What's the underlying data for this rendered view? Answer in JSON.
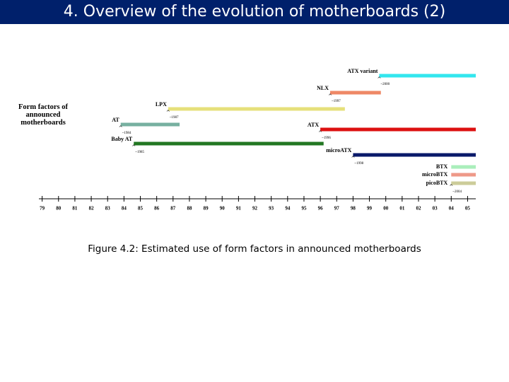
{
  "header": {
    "title": "4. Overview of the evolution of motherboards (2)"
  },
  "chart_data": {
    "type": "timeline",
    "side_label": "Form factors of announced motherboards",
    "caption": "Figure 4.2: Estimated use of form factors in announced motherboards",
    "xlim": [
      1978.8,
      2005.5
    ],
    "xticks": [
      {
        "value": 1979,
        "label": "79"
      },
      {
        "value": 1980,
        "label": "80"
      },
      {
        "value": 1981,
        "label": "81"
      },
      {
        "value": 1982,
        "label": "82"
      },
      {
        "value": 1983,
        "label": "83"
      },
      {
        "value": 1984,
        "label": "84"
      },
      {
        "value": 1985,
        "label": "85"
      },
      {
        "value": 1986,
        "label": "86"
      },
      {
        "value": 1987,
        "label": "87"
      },
      {
        "value": 1988,
        "label": "88"
      },
      {
        "value": 1989,
        "label": "89"
      },
      {
        "value": 1990,
        "label": "90"
      },
      {
        "value": 1991,
        "label": "91"
      },
      {
        "value": 1992,
        "label": "92"
      },
      {
        "value": 1993,
        "label": "93"
      },
      {
        "value": 1994,
        "label": "94"
      },
      {
        "value": 1995,
        "label": "95"
      },
      {
        "value": 1996,
        "label": "96"
      },
      {
        "value": 1997,
        "label": "97"
      },
      {
        "value": 1998,
        "label": "98"
      },
      {
        "value": 1999,
        "label": "99"
      },
      {
        "value": 2000,
        "label": "00"
      },
      {
        "value": 2001,
        "label": "01"
      },
      {
        "value": 2002,
        "label": "02"
      },
      {
        "value": 2003,
        "label": "03"
      },
      {
        "value": 2004,
        "label": "04"
      },
      {
        "value": 2005,
        "label": "05"
      }
    ],
    "series": [
      {
        "name": "ATX variant",
        "color": "#33e6ee",
        "start": 1999.6,
        "end": 2005.5,
        "note": "~2000"
      },
      {
        "name": "NLX",
        "color": "#ee8866",
        "start": 1996.6,
        "end": 1999.7,
        "note": "~1997"
      },
      {
        "name": "LPX",
        "color": "#e6e07a",
        "start": 1986.7,
        "end": 1997.5,
        "note": "~1987"
      },
      {
        "name": "AT",
        "color": "#77b0a0",
        "start": 1983.8,
        "end": 1987.4,
        "note": "~1984"
      },
      {
        "name": "ATX",
        "color": "#dd1111",
        "start": 1996,
        "end": 2005.5,
        "note": "~1996"
      },
      {
        "name": "Baby AT",
        "color": "#227722",
        "start": 1984.6,
        "end": 1996.2,
        "note": "~1985"
      },
      {
        "name": "microATX",
        "color": "#0a1a6a",
        "start": 1998,
        "end": 2005.5,
        "note": "~1998"
      },
      {
        "name": "BTX",
        "color": "#aaeebb",
        "start": 2004,
        "end": 2005.5
      },
      {
        "name": "microBTX",
        "color": "#ee9988",
        "start": 2004,
        "end": 2005.5
      },
      {
        "name": "picoBTX",
        "color": "#cccc99",
        "start": 2004,
        "end": 2005.5,
        "note": "~2004"
      }
    ]
  }
}
